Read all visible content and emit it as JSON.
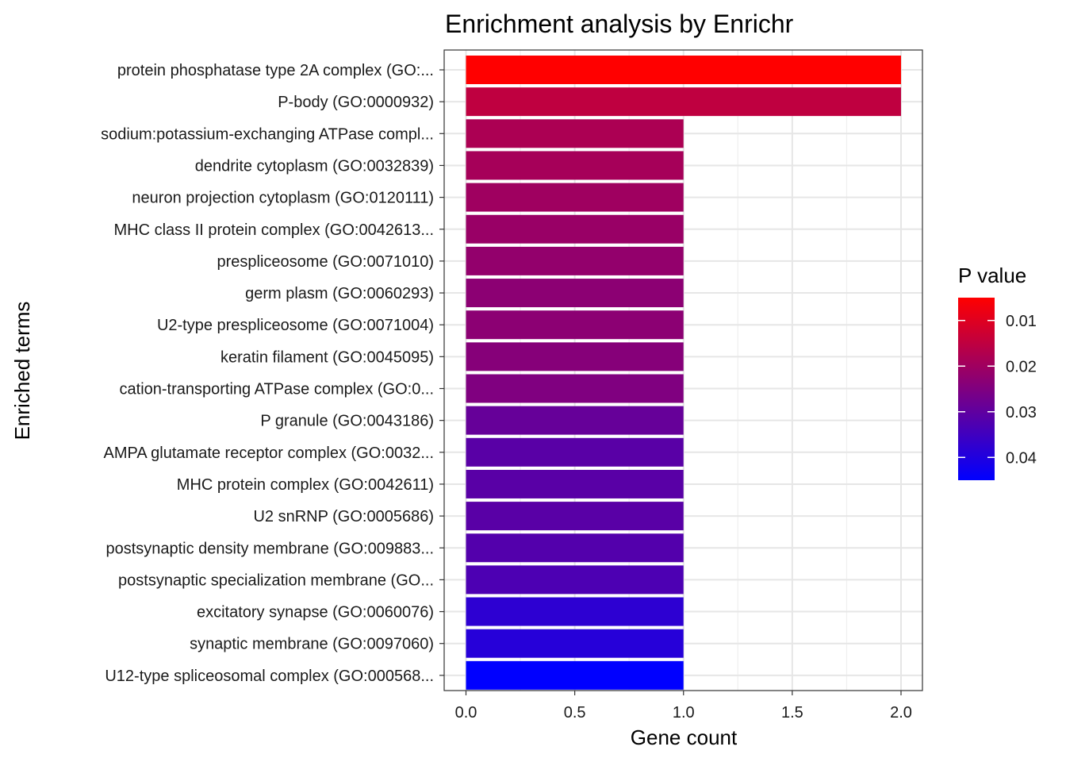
{
  "chart_data": {
    "type": "bar",
    "orientation": "horizontal",
    "title": "Enrichment analysis by Enrichr",
    "xlabel": "Gene count",
    "ylabel": "Enriched terms",
    "xlim": [
      0,
      2.1
    ],
    "xticks": [
      "0.0",
      "0.5",
      "1.0",
      "1.5",
      "2.0"
    ],
    "xtick_values": [
      0,
      0.5,
      1.0,
      1.5,
      2.0
    ],
    "grid": true,
    "legend": {
      "title": "P value",
      "position": "right",
      "range": [
        0.005,
        0.045
      ],
      "ticks": [
        "0.01",
        "0.02",
        "0.03",
        "0.04"
      ],
      "tick_values": [
        0.01,
        0.02,
        0.03,
        0.04
      ],
      "low_color": "#ff0000",
      "high_color": "#0000ff"
    },
    "categories": [
      "protein phosphatase type 2A complex (GO:...",
      "P-body (GO:0000932)",
      "sodium:potassium-exchanging ATPase compl...",
      "dendrite cytoplasm (GO:0032839)",
      "neuron projection cytoplasm (GO:0120111)",
      "MHC class II protein complex (GO:0042613...",
      "prespliceosome (GO:0071010)",
      "germ plasm (GO:0060293)",
      "U2-type prespliceosome (GO:0071004)",
      "keratin filament (GO:0045095)",
      "cation-transporting ATPase complex (GO:0...",
      "P granule (GO:0043186)",
      "AMPA glutamate receptor complex (GO:0032...",
      "MHC protein complex (GO:0042611)",
      "U2 snRNP (GO:0005686)",
      "postsynaptic density membrane (GO:009883...",
      "postsynaptic specialization membrane (GO...",
      "excitatory synapse (GO:0060076)",
      "synaptic membrane (GO:0097060)",
      "U12-type spliceosomal complex (GO:000568..."
    ],
    "values": [
      2,
      2,
      1,
      1,
      1,
      1,
      1,
      1,
      1,
      1,
      1,
      1,
      1,
      1,
      1,
      1,
      1,
      1,
      1,
      1
    ],
    "pvalues": [
      0.005,
      0.015,
      0.018,
      0.019,
      0.02,
      0.021,
      0.022,
      0.023,
      0.023,
      0.024,
      0.025,
      0.029,
      0.031,
      0.031,
      0.031,
      0.032,
      0.033,
      0.038,
      0.039,
      0.045
    ]
  }
}
